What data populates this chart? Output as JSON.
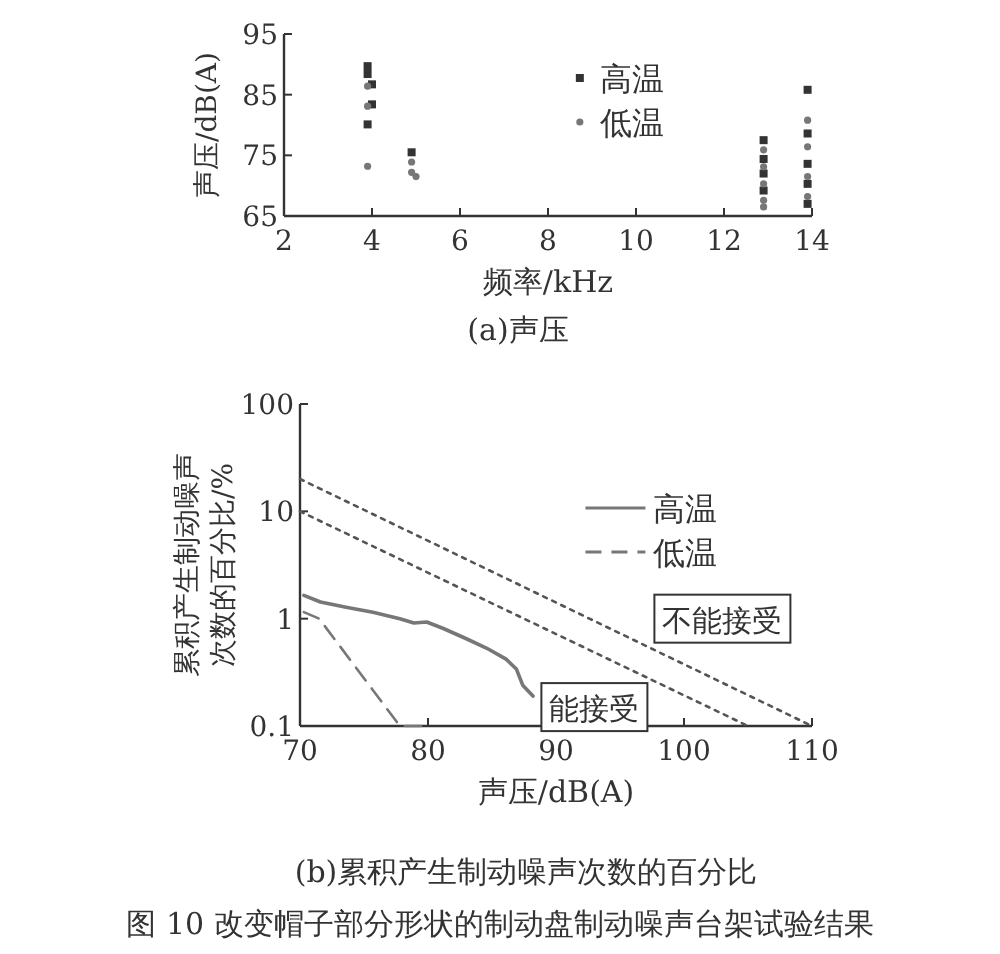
{
  "chart_data": [
    {
      "type": "scatter",
      "title": "(a)声压",
      "xlabel": "频率/kHz",
      "ylabel": "声压/dB(A)",
      "xlim": [
        2,
        14
      ],
      "xticks": [
        2,
        4,
        6,
        8,
        10,
        12,
        14
      ],
      "ylim": [
        65,
        95
      ],
      "yticks": [
        65,
        75,
        85,
        95
      ],
      "grid": false,
      "legend": "top",
      "series": [
        {
          "name": "高温",
          "color": "#333333",
          "marker": "square",
          "x": [
            3.9,
            3.9,
            4.0,
            4.0,
            3.9,
            4.9,
            12.9,
            12.9,
            12.9,
            12.9,
            13.9,
            13.9,
            13.9,
            13.9,
            13.9
          ],
          "values": [
            89.7,
            88.4,
            86.7,
            83.4,
            80.1,
            75.5,
            77.5,
            74.4,
            72.0,
            69.2,
            85.8,
            78.6,
            73.6,
            70.3,
            67.0
          ]
        },
        {
          "name": "低温",
          "color": "#777777",
          "marker": "circle",
          "x": [
            3.9,
            3.9,
            3.9,
            4.9,
            4.9,
            5.0,
            12.9,
            12.9,
            12.9,
            12.9,
            12.9,
            13.9,
            13.9,
            13.9,
            13.9
          ],
          "values": [
            86.4,
            83.1,
            73.2,
            73.9,
            72.2,
            71.5,
            75.9,
            73.1,
            70.3,
            67.6,
            66.5,
            80.8,
            76.4,
            71.5,
            68.2
          ]
        }
      ]
    },
    {
      "type": "line",
      "title": "(b)累积产生制动噪声次数的百分比",
      "xlabel": "声压/dB(A)",
      "ylabel": "累积产生制动噪声次数的百分比/%",
      "log": "y",
      "xlim": [
        70,
        110
      ],
      "xticks": [
        70,
        80,
        90,
        100,
        110
      ],
      "ylim": [
        0.1,
        100
      ],
      "yticks": [
        0.1,
        1,
        10,
        100
      ],
      "grid": false,
      "legend": "top right",
      "series": [
        {
          "name": "高温",
          "color": "#777777",
          "line_style": "solid",
          "x": [
            70.3,
            71.6,
            73.6,
            75.7,
            77.8,
            78.9,
            79.9,
            81.2,
            83.0,
            84.6,
            86.1,
            86.9,
            87.4,
            88.2
          ],
          "values": [
            1.65,
            1.43,
            1.28,
            1.15,
            1.0,
            0.91,
            0.93,
            0.81,
            0.65,
            0.53,
            0.42,
            0.34,
            0.24,
            0.19
          ]
        },
        {
          "name": "低温",
          "color": "#777777",
          "line_style": "dashed",
          "x": [
            70.3,
            71.5,
            77.8,
            79.9
          ],
          "values": [
            1.15,
            1.0,
            0.1,
            0.1
          ]
        },
        {
          "color": "#555555",
          "line_style": "dotted",
          "x": [
            70,
            110
          ],
          "values": [
            20,
            0.1
          ]
        },
        {
          "color": "#555555",
          "line_style": "dotted",
          "x": [
            70,
            105
          ],
          "values": [
            10,
            0.1
          ]
        }
      ],
      "annotations": [
        "不能接受",
        "能接受",
        "图 10   改变帽子部分形状的制动盘制动噪声台架试验结果"
      ]
    }
  ]
}
